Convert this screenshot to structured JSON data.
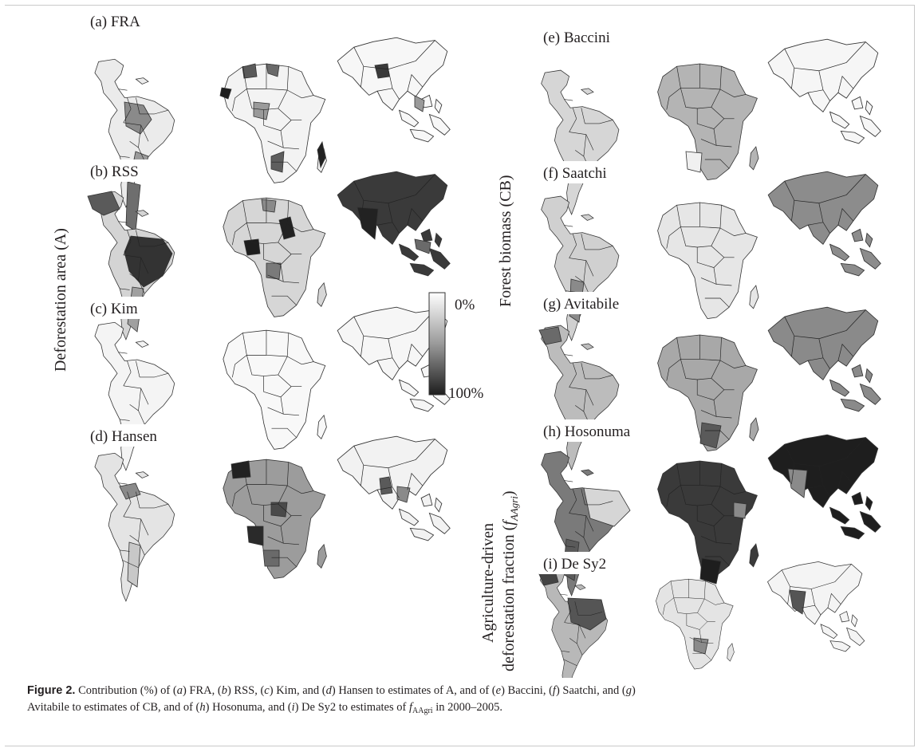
{
  "figure": {
    "panels": [
      {
        "id": "a",
        "label": "(a) FRA"
      },
      {
        "id": "b",
        "label": "(b) RSS"
      },
      {
        "id": "c",
        "label": "(c) Kim"
      },
      {
        "id": "d",
        "label": "(d) Hansen"
      },
      {
        "id": "e",
        "label": "(e) Baccini"
      },
      {
        "id": "f",
        "label": "(f) Saatchi"
      },
      {
        "id": "g",
        "label": "(g) Avitabile"
      },
      {
        "id": "h",
        "label": "(h) Hosonuma"
      },
      {
        "id": "i",
        "label": "(i) De Sy2"
      }
    ],
    "group_labels": {
      "left": "Deforestation area (A)",
      "right_top": "Forest biomass (CB)",
      "right_bottom_line1": "Agriculture-driven",
      "right_bottom_line2": "deforestation fraction (",
      "right_bottom_symbol": "f",
      "right_bottom_sub": "AAgri",
      "right_bottom_close": ")"
    },
    "colorbar": {
      "min_label": "0%",
      "max_label": "100%"
    }
  },
  "caption": {
    "figure_label": "Figure 2.",
    "p1": " Contribution (%) of (",
    "a": "a",
    "p2": ") FRA, (",
    "b": "b",
    "p3": ") RSS, (",
    "c": "c",
    "p4": ") Kim, and (",
    "d": "d",
    "p5": ") Hansen to estimates of A, and of (",
    "e": "e",
    "p6": ") Baccini, (",
    "f": "f",
    "p7": ") Saatchi, and (",
    "g": "g",
    "p8": ")",
    "p9": "Avitabile to estimates of CB, and of (",
    "h": "h",
    "p10": ") Hosonuma, and (",
    "i": "i",
    "p11": ") De Sy2 to estimates of ",
    "fsym": "f",
    "fsub": "AAgri",
    "p12": " in 2000–2005."
  }
}
